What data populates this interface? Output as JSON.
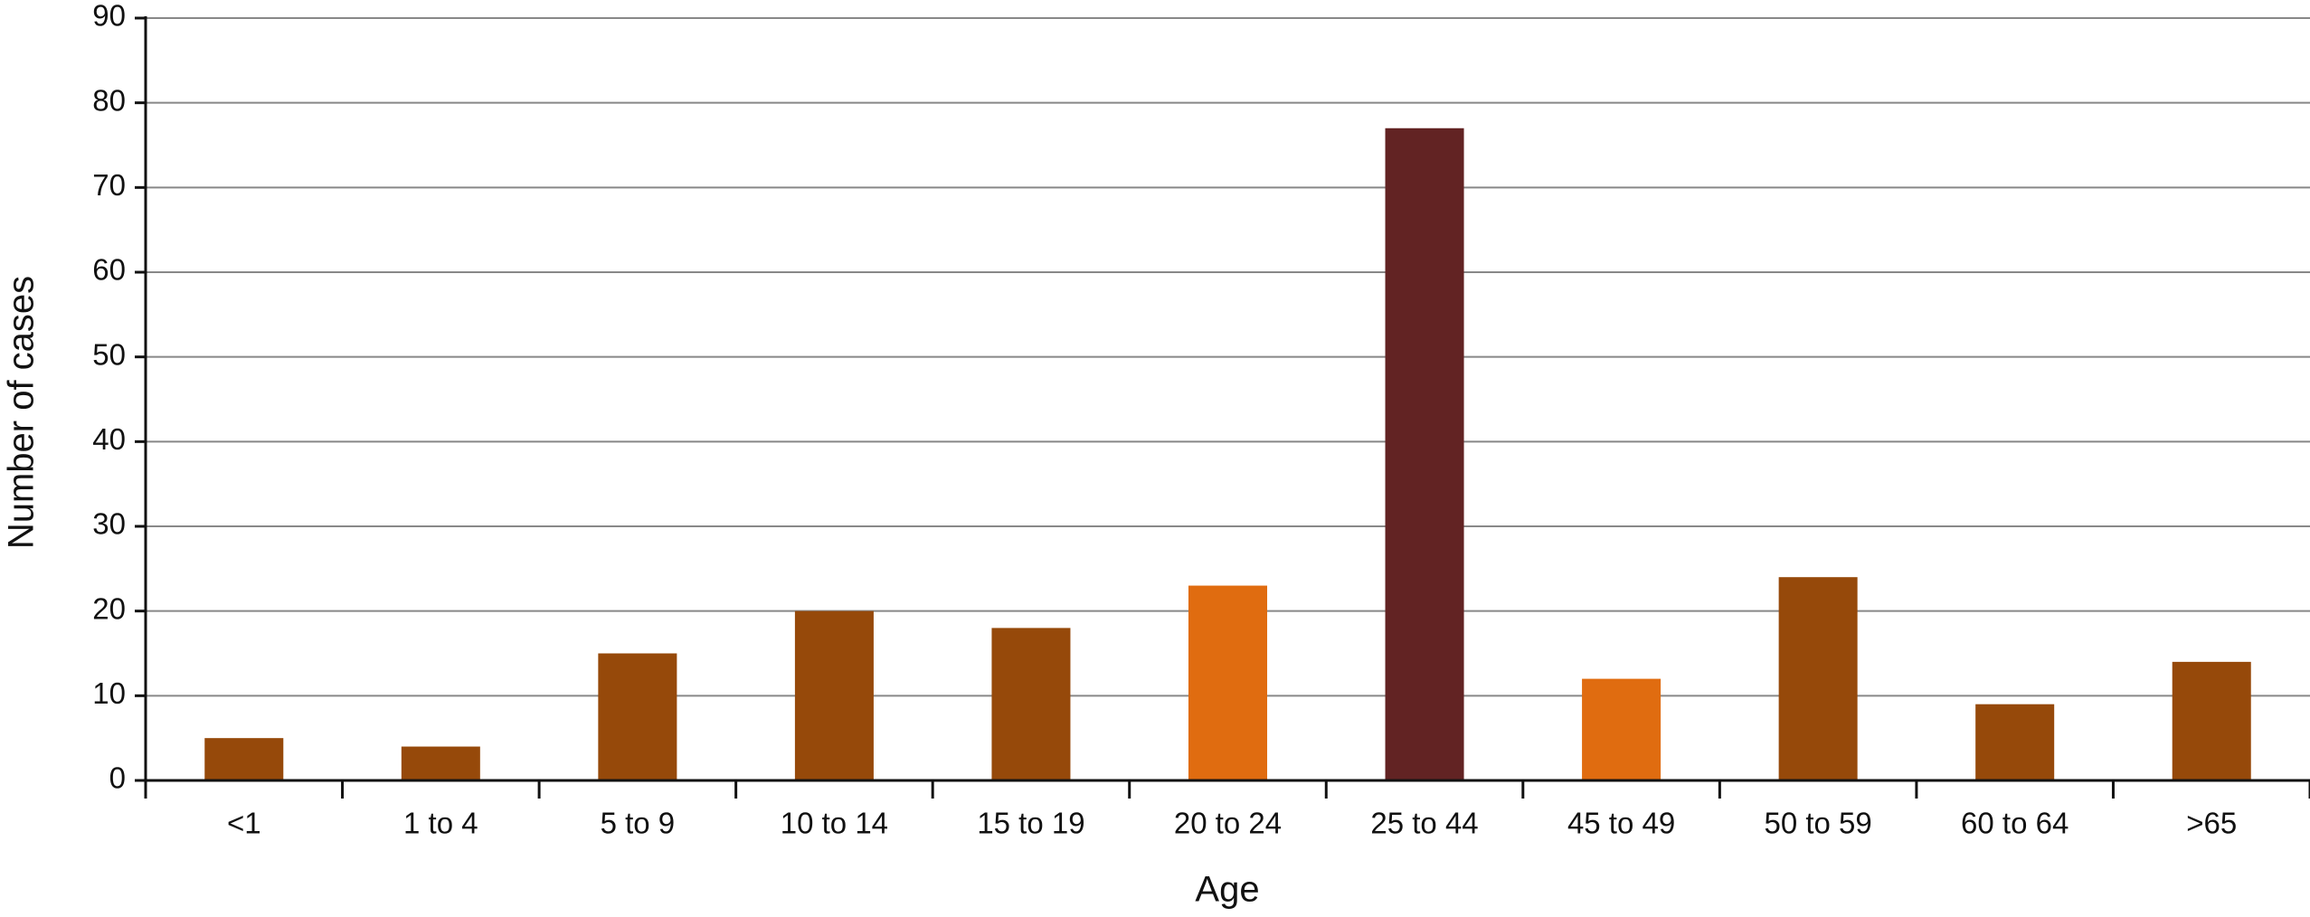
{
  "chart_data": {
    "type": "bar",
    "categories": [
      "<1",
      "1 to 4",
      "5 to 9",
      "10 to 14",
      "15 to 19",
      "20 to 24",
      "25 to 44",
      "45 to 49",
      "50 to 59",
      "60 to 64",
      ">65"
    ],
    "values": [
      5,
      4,
      15,
      20,
      18,
      23,
      77,
      12,
      24,
      9,
      14
    ],
    "colors": [
      "#96490a",
      "#96490a",
      "#96490a",
      "#96490a",
      "#96490a",
      "#e06c10",
      "#622323",
      "#e06c10",
      "#96490a",
      "#96490a",
      "#96490a"
    ],
    "xlabel": "Age",
    "ylabel": "Number of cases",
    "ylim": [
      0,
      90
    ],
    "yticks": [
      0,
      10,
      20,
      30,
      40,
      50,
      60,
      70,
      80,
      90
    ],
    "grid": true
  }
}
